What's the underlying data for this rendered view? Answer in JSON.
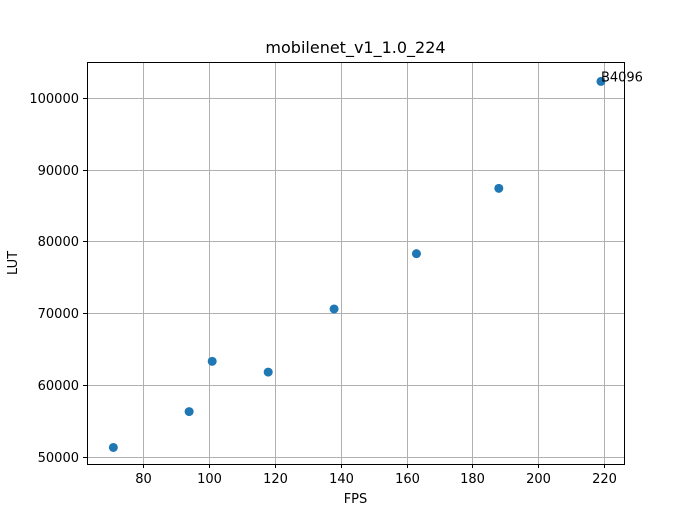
{
  "chart_data": {
    "type": "scatter",
    "title": "mobilenet_v1_1.0_224",
    "xlabel": "FPS",
    "ylabel": "LUT",
    "xlim": [
      63,
      226
    ],
    "ylim": [
      49000,
      105000
    ],
    "xticks": [
      80,
      100,
      120,
      140,
      160,
      180,
      200,
      220
    ],
    "yticks": [
      50000,
      60000,
      70000,
      80000,
      90000,
      100000
    ],
    "grid": true,
    "marker_color": "#1f77b4",
    "series": [
      {
        "x": [
          71,
          94,
          101,
          118,
          138,
          163,
          188,
          219
        ],
        "y": [
          51300,
          56300,
          63300,
          61800,
          70600,
          78300,
          87400,
          102300
        ]
      }
    ],
    "annotations": [
      {
        "text": "B4096",
        "x": 219,
        "y": 102300
      }
    ]
  }
}
